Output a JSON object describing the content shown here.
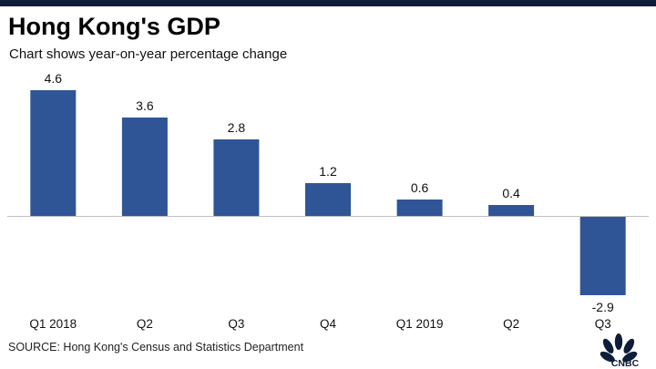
{
  "header": {
    "title": "Hong Kong's GDP",
    "subtitle": "Chart shows year-on-year percentage change"
  },
  "footer": {
    "source": "SOURCE: Hong Kong's Census and Statistics Department",
    "logo_text": "CNBC"
  },
  "colors": {
    "bar": "#2f5597",
    "topbar": "#0f1d3a"
  },
  "chart_data": {
    "type": "bar",
    "title": "Hong Kong's GDP",
    "subtitle": "Chart shows year-on-year percentage change",
    "categories": [
      "Q1 2018",
      "Q2",
      "Q3",
      "Q4",
      "Q1 2019",
      "Q2",
      "Q3"
    ],
    "values": [
      4.6,
      3.6,
      2.8,
      1.2,
      0.6,
      0.4,
      -2.9
    ],
    "data_labels": [
      "4.6",
      "3.6",
      "2.8",
      "1.2",
      "0.6",
      "0.4",
      "-2.9"
    ],
    "xlabel": "",
    "ylabel": "",
    "grid": false,
    "legend": "none"
  }
}
